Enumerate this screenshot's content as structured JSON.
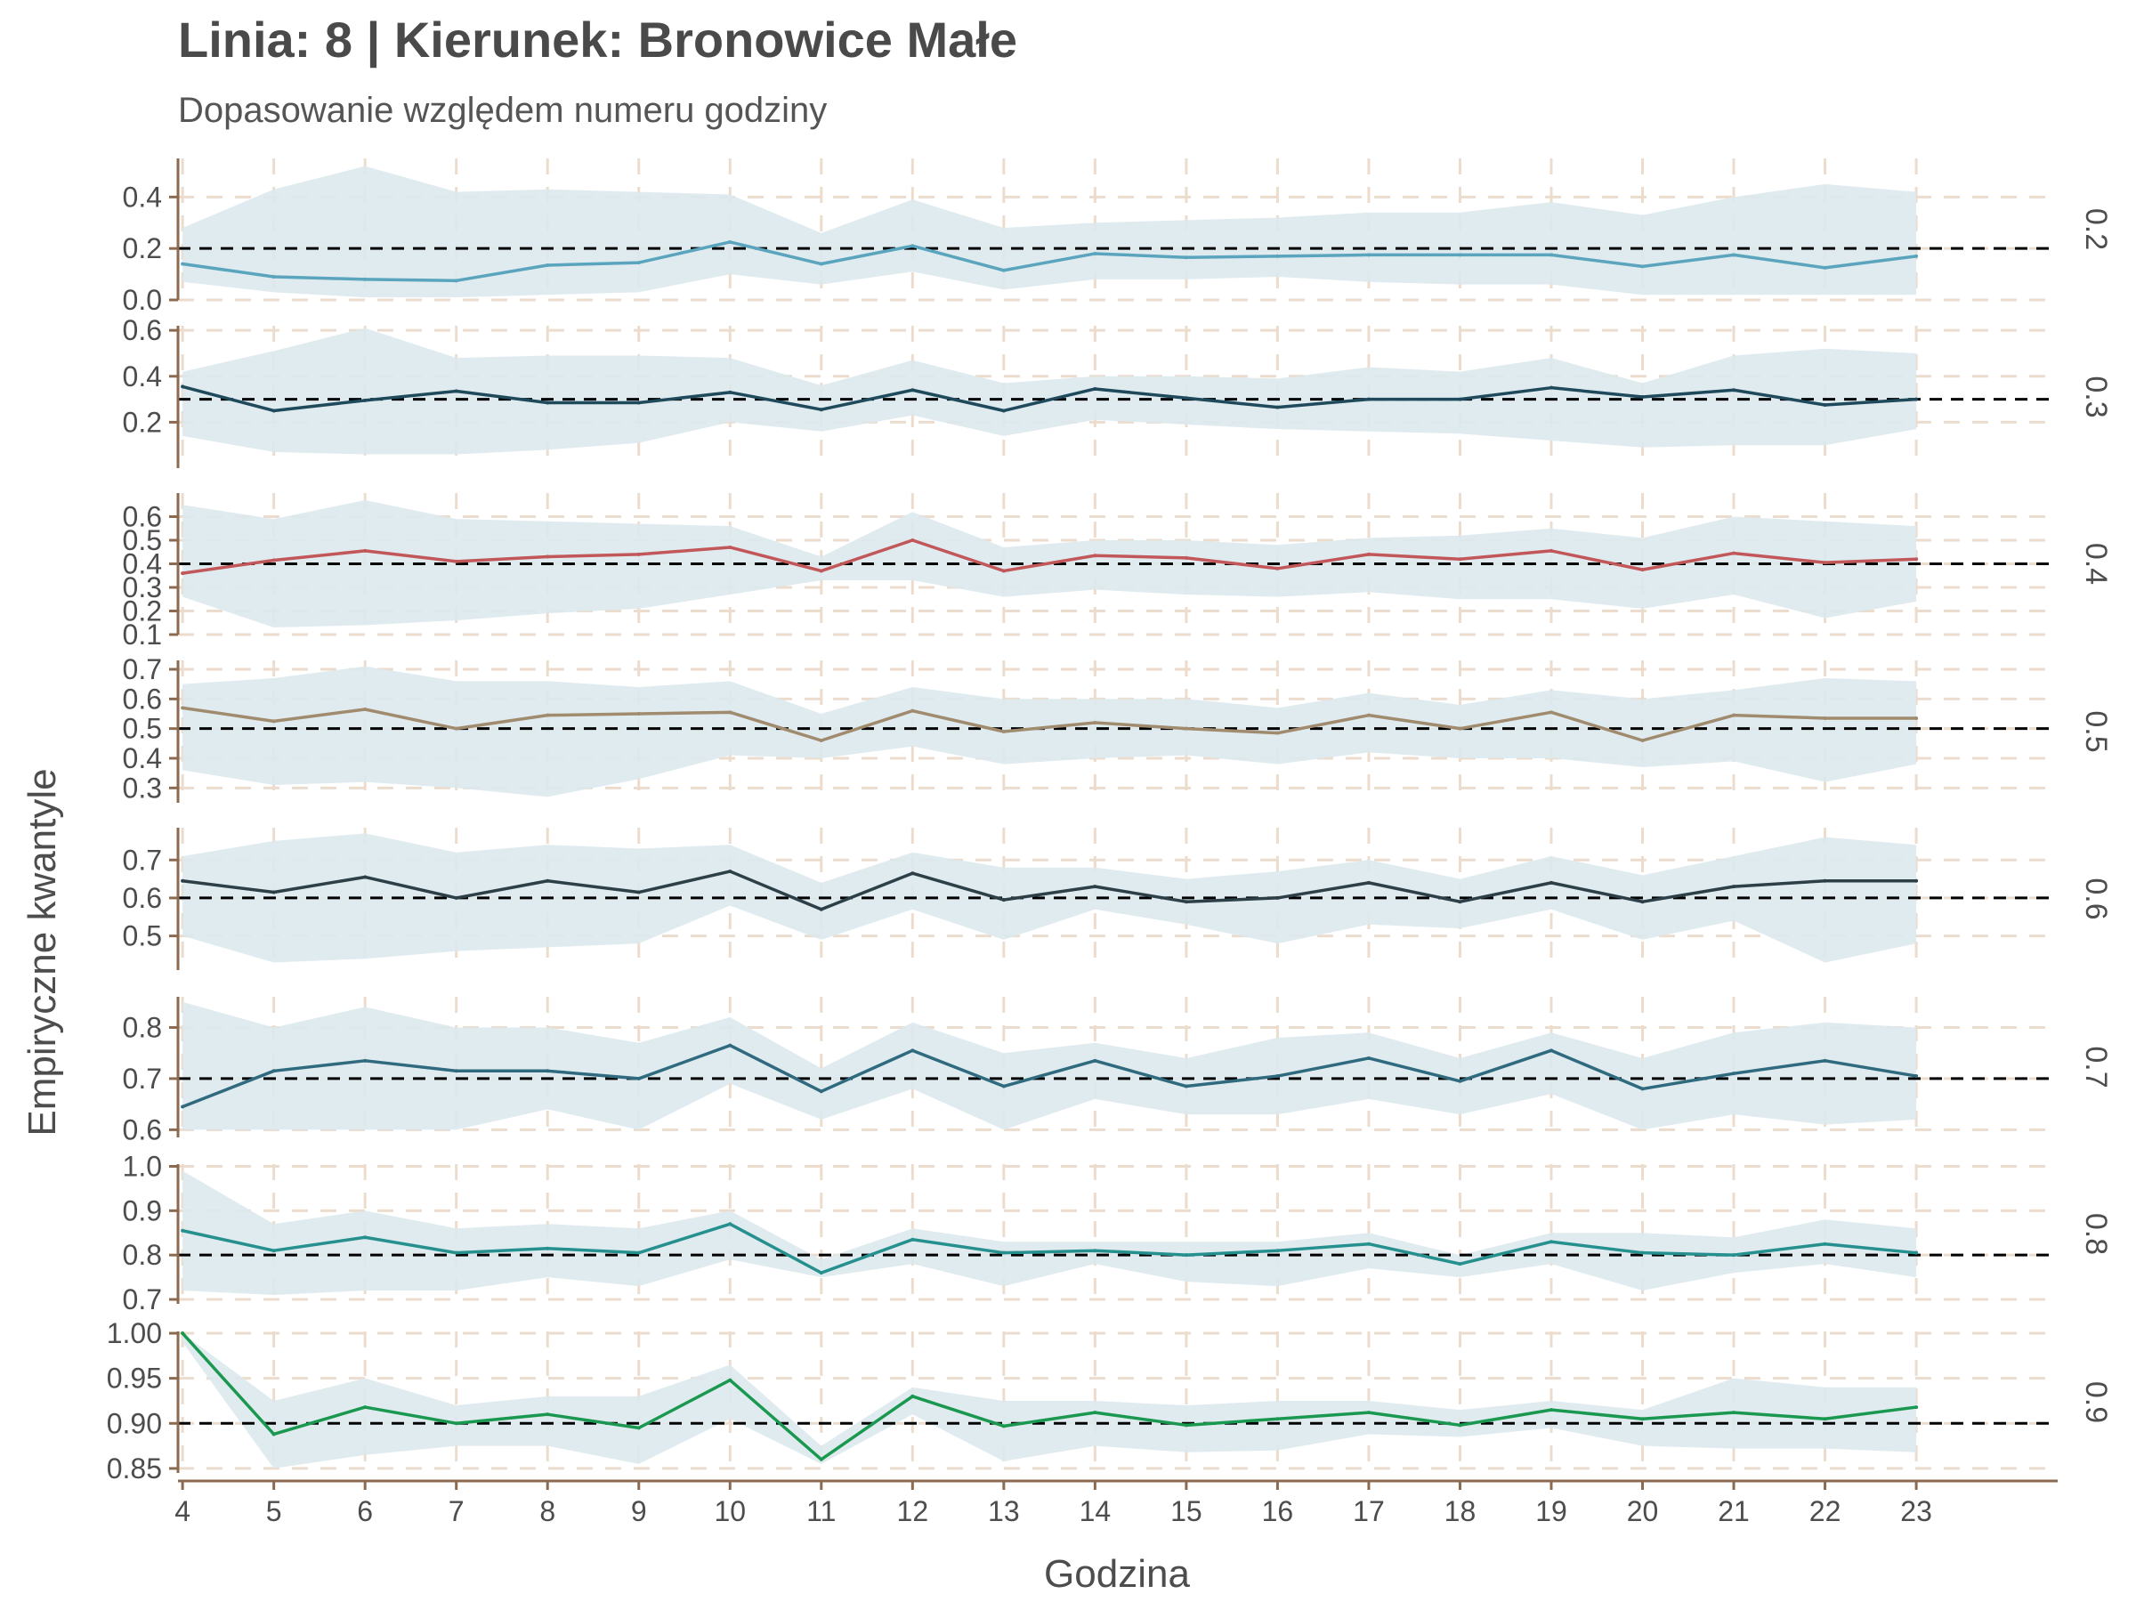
{
  "title": "Linia: 8 | Kierunek: Bronowice Małe",
  "subtitle": "Dopasowanie względem numeru godziny",
  "colors": {
    "band": "#dde9ee",
    "grid": "#ecdccd",
    "axis": "#8b6a4f",
    "reference": "#000000",
    "text": "#4d4d4d"
  },
  "chart_data": {
    "type": "line",
    "xlabel": "Godzina",
    "ylabel": "Empiryczne kwantyle",
    "x": [
      4,
      5,
      6,
      7,
      8,
      9,
      10,
      11,
      12,
      13,
      14,
      15,
      16,
      17,
      18,
      19,
      20,
      21,
      22,
      23
    ],
    "xlim": [
      3.95,
      24.55
    ],
    "grid": true,
    "panels": [
      {
        "label": "0.2",
        "reference": 0.2,
        "color": "#5aa5bd",
        "ylim": [
          0.0,
          0.55
        ],
        "yticks": [
          "0.0",
          "0.2",
          "0.4"
        ],
        "ytick_values": [
          0.0,
          0.2,
          0.4
        ],
        "values": [
          0.14,
          0.09,
          0.08,
          0.075,
          0.135,
          0.145,
          0.225,
          0.14,
          0.21,
          0.115,
          0.18,
          0.165,
          0.17,
          0.175,
          0.175,
          0.175,
          0.13,
          0.175,
          0.125,
          0.17
        ],
        "lower": [
          0.07,
          0.03,
          0.01,
          0.01,
          0.02,
          0.03,
          0.1,
          0.06,
          0.11,
          0.04,
          0.08,
          0.08,
          0.09,
          0.07,
          0.06,
          0.06,
          0.02,
          0.02,
          0.02,
          0.02
        ],
        "upper": [
          0.28,
          0.43,
          0.52,
          0.42,
          0.43,
          0.42,
          0.41,
          0.26,
          0.39,
          0.28,
          0.3,
          0.31,
          0.32,
          0.34,
          0.34,
          0.38,
          0.33,
          0.4,
          0.45,
          0.42
        ]
      },
      {
        "label": "0.3",
        "reference": 0.3,
        "color": "#1f4a5c",
        "ylim": [
          0.0,
          0.62
        ],
        "yticks": [
          "0.2",
          "0.4",
          "0.6"
        ],
        "ytick_values": [
          0.2,
          0.4,
          0.6
        ],
        "values": [
          0.355,
          0.25,
          0.295,
          0.335,
          0.285,
          0.285,
          0.33,
          0.255,
          0.34,
          0.25,
          0.345,
          0.305,
          0.265,
          0.3,
          0.3,
          0.35,
          0.31,
          0.34,
          0.275,
          0.3
        ],
        "lower": [
          0.14,
          0.07,
          0.06,
          0.06,
          0.08,
          0.11,
          0.2,
          0.16,
          0.23,
          0.14,
          0.21,
          0.19,
          0.17,
          0.16,
          0.15,
          0.12,
          0.09,
          0.1,
          0.1,
          0.17
        ],
        "upper": [
          0.42,
          0.51,
          0.61,
          0.48,
          0.49,
          0.49,
          0.48,
          0.36,
          0.47,
          0.37,
          0.4,
          0.4,
          0.39,
          0.44,
          0.42,
          0.48,
          0.37,
          0.49,
          0.52,
          0.5
        ]
      },
      {
        "label": "0.4",
        "reference": 0.4,
        "color": "#c25759",
        "ylim": [
          0.1,
          0.7
        ],
        "yticks": [
          "0.1",
          "0.2",
          "0.3",
          "0.4",
          "0.5",
          "0.6"
        ],
        "ytick_values": [
          0.1,
          0.2,
          0.3,
          0.4,
          0.5,
          0.6
        ],
        "values": [
          0.36,
          0.415,
          0.455,
          0.41,
          0.43,
          0.44,
          0.47,
          0.37,
          0.5,
          0.37,
          0.435,
          0.425,
          0.38,
          0.44,
          0.42,
          0.455,
          0.375,
          0.445,
          0.405,
          0.42
        ],
        "lower": [
          0.26,
          0.13,
          0.14,
          0.16,
          0.19,
          0.21,
          0.27,
          0.33,
          0.33,
          0.26,
          0.29,
          0.27,
          0.26,
          0.28,
          0.25,
          0.25,
          0.21,
          0.27,
          0.17,
          0.24
        ],
        "upper": [
          0.65,
          0.59,
          0.67,
          0.59,
          0.58,
          0.57,
          0.56,
          0.43,
          0.62,
          0.47,
          0.5,
          0.5,
          0.48,
          0.51,
          0.52,
          0.55,
          0.51,
          0.6,
          0.58,
          0.56
        ]
      },
      {
        "label": "0.5",
        "reference": 0.5,
        "color": "#a08b6e",
        "ylim": [
          0.25,
          0.73
        ],
        "yticks": [
          "0.3",
          "0.4",
          "0.5",
          "0.6",
          "0.7"
        ],
        "ytick_values": [
          0.3,
          0.4,
          0.5,
          0.6,
          0.7
        ],
        "values": [
          0.57,
          0.525,
          0.565,
          0.5,
          0.545,
          0.55,
          0.555,
          0.46,
          0.56,
          0.49,
          0.52,
          0.5,
          0.485,
          0.545,
          0.5,
          0.555,
          0.46,
          0.545,
          0.535,
          0.535
        ],
        "lower": [
          0.36,
          0.31,
          0.32,
          0.3,
          0.27,
          0.33,
          0.41,
          0.4,
          0.44,
          0.38,
          0.4,
          0.41,
          0.38,
          0.42,
          0.4,
          0.4,
          0.37,
          0.39,
          0.32,
          0.38
        ],
        "upper": [
          0.65,
          0.67,
          0.71,
          0.66,
          0.66,
          0.64,
          0.66,
          0.55,
          0.64,
          0.6,
          0.6,
          0.6,
          0.57,
          0.62,
          0.58,
          0.63,
          0.6,
          0.63,
          0.67,
          0.66
        ]
      },
      {
        "label": "0.6",
        "reference": 0.6,
        "color": "#2d3f47",
        "ylim": [
          0.41,
          0.785
        ],
        "yticks": [
          "0.5",
          "0.6",
          "0.7"
        ],
        "ytick_values": [
          0.5,
          0.6,
          0.7
        ],
        "values": [
          0.645,
          0.615,
          0.655,
          0.6,
          0.645,
          0.615,
          0.67,
          0.57,
          0.665,
          0.595,
          0.63,
          0.59,
          0.6,
          0.64,
          0.59,
          0.64,
          0.59,
          0.63,
          0.645,
          0.645
        ],
        "lower": [
          0.5,
          0.43,
          0.44,
          0.46,
          0.47,
          0.48,
          0.58,
          0.49,
          0.57,
          0.49,
          0.57,
          0.53,
          0.48,
          0.53,
          0.52,
          0.57,
          0.49,
          0.54,
          0.43,
          0.48
        ],
        "upper": [
          0.71,
          0.75,
          0.77,
          0.72,
          0.74,
          0.73,
          0.74,
          0.64,
          0.72,
          0.68,
          0.68,
          0.65,
          0.67,
          0.7,
          0.65,
          0.71,
          0.66,
          0.71,
          0.76,
          0.74
        ]
      },
      {
        "label": "0.7",
        "reference": 0.7,
        "color": "#2f6a7e",
        "ylim": [
          0.585,
          0.86
        ],
        "yticks": [
          "0.6",
          "0.7",
          "0.8"
        ],
        "ytick_values": [
          0.6,
          0.7,
          0.8
        ],
        "values": [
          0.645,
          0.715,
          0.735,
          0.715,
          0.715,
          0.7,
          0.765,
          0.675,
          0.755,
          0.685,
          0.735,
          0.685,
          0.705,
          0.74,
          0.695,
          0.755,
          0.68,
          0.71,
          0.735,
          0.705
        ],
        "lower": [
          0.6,
          0.6,
          0.6,
          0.6,
          0.64,
          0.6,
          0.69,
          0.62,
          0.68,
          0.6,
          0.66,
          0.63,
          0.63,
          0.66,
          0.63,
          0.67,
          0.6,
          0.63,
          0.61,
          0.62
        ],
        "upper": [
          0.85,
          0.8,
          0.84,
          0.8,
          0.8,
          0.77,
          0.82,
          0.72,
          0.81,
          0.75,
          0.77,
          0.74,
          0.78,
          0.79,
          0.74,
          0.79,
          0.74,
          0.79,
          0.81,
          0.8
        ]
      },
      {
        "label": "0.8",
        "reference": 0.8,
        "color": "#26908e",
        "ylim": [
          0.69,
          1.005
        ],
        "yticks": [
          "0.7",
          "0.8",
          "0.9",
          "1.0"
        ],
        "ytick_values": [
          0.7,
          0.8,
          0.9,
          1.0
        ],
        "values": [
          0.855,
          0.81,
          0.84,
          0.805,
          0.815,
          0.805,
          0.87,
          0.76,
          0.835,
          0.805,
          0.81,
          0.8,
          0.81,
          0.825,
          0.78,
          0.83,
          0.805,
          0.8,
          0.825,
          0.805
        ],
        "lower": [
          0.72,
          0.71,
          0.72,
          0.72,
          0.75,
          0.73,
          0.79,
          0.75,
          0.78,
          0.73,
          0.78,
          0.74,
          0.73,
          0.77,
          0.75,
          0.78,
          0.72,
          0.76,
          0.78,
          0.75
        ],
        "upper": [
          0.99,
          0.87,
          0.9,
          0.86,
          0.87,
          0.86,
          0.9,
          0.79,
          0.86,
          0.83,
          0.83,
          0.83,
          0.83,
          0.85,
          0.8,
          0.85,
          0.85,
          0.84,
          0.88,
          0.86
        ]
      },
      {
        "label": "0.9",
        "reference": 0.9,
        "color": "#1a9850",
        "ylim": [
          0.845,
          1.002
        ],
        "yticks": [
          "0.85",
          "0.90",
          "0.95",
          "1.00"
        ],
        "ytick_values": [
          0.85,
          0.9,
          0.95,
          1.0
        ],
        "values": [
          1.0,
          0.888,
          0.918,
          0.9,
          0.91,
          0.895,
          0.948,
          0.86,
          0.93,
          0.897,
          0.912,
          0.898,
          0.905,
          0.912,
          0.898,
          0.915,
          0.905,
          0.912,
          0.905,
          0.918
        ],
        "lower": [
          0.99,
          0.85,
          0.865,
          0.875,
          0.875,
          0.855,
          0.905,
          0.855,
          0.91,
          0.858,
          0.875,
          0.868,
          0.87,
          0.888,
          0.885,
          0.895,
          0.875,
          0.872,
          0.872,
          0.868
        ],
        "upper": [
          1.0,
          0.925,
          0.95,
          0.92,
          0.93,
          0.93,
          0.965,
          0.875,
          0.94,
          0.925,
          0.925,
          0.92,
          0.925,
          0.925,
          0.915,
          0.925,
          0.915,
          0.95,
          0.94,
          0.94
        ]
      }
    ]
  }
}
